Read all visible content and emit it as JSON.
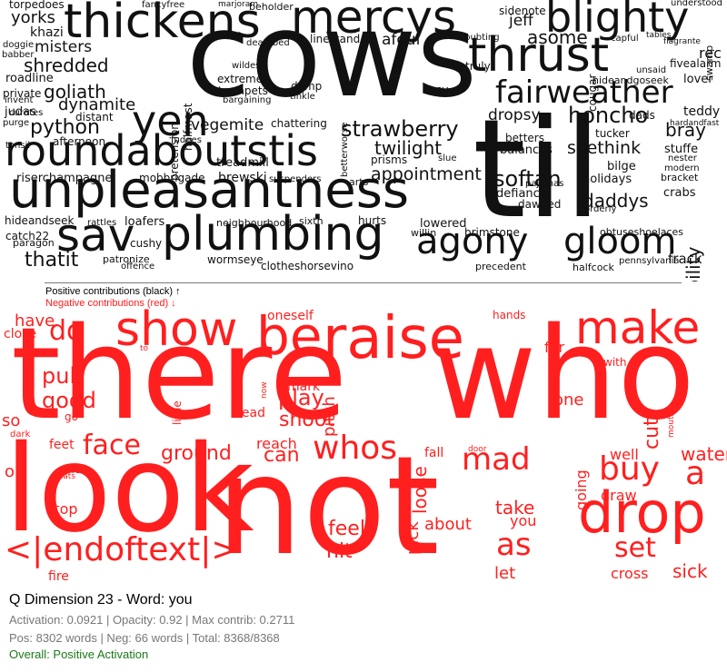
{
  "chart_data": {
    "type": "wordcloud",
    "legend": {
      "positive": "Positive contributions (black) ↑",
      "negative": "Negative contributions (red) ↓"
    },
    "colors": {
      "positive": "#111111",
      "negative": "#ff1f1f"
    },
    "positive_words": [
      {
        "text": "cows",
        "weight": 100
      },
      {
        "text": "til",
        "weight": 95
      },
      {
        "text": "unpleasantness",
        "weight": 60
      },
      {
        "text": "roundaboutstis",
        "weight": 50
      },
      {
        "text": "plumbing",
        "weight": 52
      },
      {
        "text": "thickens",
        "weight": 48
      },
      {
        "text": "mercys",
        "weight": 46
      },
      {
        "text": "thrust",
        "weight": 44
      },
      {
        "text": "blighty",
        "weight": 40
      },
      {
        "text": "sav",
        "weight": 42
      },
      {
        "text": "agony",
        "weight": 38
      },
      {
        "text": "gloom",
        "weight": 38
      },
      {
        "text": "fairweather",
        "weight": 32
      },
      {
        "text": "yen",
        "weight": 36
      },
      {
        "text": "strawberry",
        "weight": 24
      },
      {
        "text": "python",
        "weight": 20
      },
      {
        "text": "honcho",
        "weight": 22
      },
      {
        "text": "liability",
        "weight": 18
      },
      {
        "text": "shredded",
        "weight": 18
      },
      {
        "text": "goliath",
        "weight": 18
      },
      {
        "text": "dynamite",
        "weight": 17
      },
      {
        "text": "thatit",
        "weight": 18
      },
      {
        "text": "appointment",
        "weight": 17
      },
      {
        "text": "softan",
        "weight": 18
      },
      {
        "text": "twilight",
        "weight": 17
      },
      {
        "text": "asome",
        "weight": 18
      },
      {
        "text": "seethink",
        "weight": 16
      },
      {
        "text": "daddys",
        "weight": 16
      },
      {
        "text": "dropsy",
        "weight": 15
      },
      {
        "text": "vegemite",
        "weight": 15
      },
      {
        "text": "bray",
        "weight": 16
      },
      {
        "text": "frack",
        "weight": 14
      },
      {
        "text": "yorks",
        "weight": 16
      },
      {
        "text": "torpedoes",
        "weight": 11
      },
      {
        "text": "misters",
        "weight": 14
      },
      {
        "text": "afoul",
        "weight": 14
      },
      {
        "text": "jeff",
        "weight": 14
      },
      {
        "text": "wormseye",
        "weight": 11
      },
      {
        "text": "clotheshorsevino",
        "weight": 11
      },
      {
        "text": "brimstone",
        "weight": 11
      },
      {
        "text": "obtuseshoelaces",
        "weight": 10
      },
      {
        "text": "balances",
        "weight": 11
      },
      {
        "text": "holidays",
        "weight": 11
      },
      {
        "text": "crabs",
        "weight": 11
      },
      {
        "text": "teddy",
        "weight": 11
      },
      {
        "text": "lover",
        "weight": 11
      },
      {
        "text": "stuffe",
        "weight": 11
      },
      {
        "text": "loafers",
        "weight": 11
      },
      {
        "text": "patronize",
        "weight": 9
      },
      {
        "text": "hideandseek",
        "weight": 10
      },
      {
        "text": "catch22",
        "weight": 10
      },
      {
        "text": "paragon",
        "weight": 9
      },
      {
        "text": "riserchampagne",
        "weight": 10
      },
      {
        "text": "mobbrigade",
        "weight": 10
      },
      {
        "text": "brewski",
        "weight": 11
      },
      {
        "text": "lowered",
        "weight": 11
      },
      {
        "text": "willin",
        "weight": 9
      },
      {
        "text": "halfcock",
        "weight": 9
      },
      {
        "text": "fivealarm",
        "weight": 10
      },
      {
        "text": "rec",
        "weight": 12
      },
      {
        "text": "sidenote",
        "weight": 10
      },
      {
        "text": "beholder",
        "weight": 9
      },
      {
        "text": "marjoram",
        "weight": 8
      },
      {
        "text": "fancyfree",
        "weight": 9
      },
      {
        "text": "khazi",
        "weight": 11
      },
      {
        "text": "roadline",
        "weight": 11
      },
      {
        "text": "afternoon",
        "weight": 10
      },
      {
        "text": "linestand",
        "weight": 10
      },
      {
        "text": "extreme",
        "weight": 10
      },
      {
        "text": "trumpets",
        "weight": 9
      },
      {
        "text": "chattering",
        "weight": 10
      },
      {
        "text": "prisms",
        "weight": 10
      },
      {
        "text": "defiance",
        "weight": 10
      },
      {
        "text": "dawned",
        "weight": 10
      },
      {
        "text": "betters",
        "weight": 10
      },
      {
        "text": "tucker",
        "weight": 10
      },
      {
        "text": "bilge",
        "weight": 10
      },
      {
        "text": "treadmill",
        "weight": 10
      },
      {
        "text": "neighbourhood",
        "weight": 8
      },
      {
        "text": "hurts",
        "weight": 9
      },
      {
        "text": "sixth",
        "weight": 8
      },
      {
        "text": "cushy",
        "weight": 10
      },
      {
        "text": "doubting",
        "weight": 8
      },
      {
        "text": "truly",
        "weight": 10
      },
      {
        "text": "nosy",
        "weight": 10
      },
      {
        "text": "damp",
        "weight": 10
      },
      {
        "text": "tinkle",
        "weight": 8
      },
      {
        "text": "wildest",
        "weight": 8
      },
      {
        "text": "deathbed",
        "weight": 8
      },
      {
        "text": "swamp",
        "weight": 9
      },
      {
        "text": "understood",
        "weight": 8
      },
      {
        "text": "capful",
        "weight": 8
      },
      {
        "text": "tables",
        "weight": 7
      },
      {
        "text": "flagrante",
        "weight": 7
      },
      {
        "text": "unsaid",
        "weight": 8
      },
      {
        "text": "hideandgoseek",
        "weight": 8
      },
      {
        "text": "dads",
        "weight": 10
      },
      {
        "text": "hardandfast",
        "weight": 8
      },
      {
        "text": "nester",
        "weight": 8
      },
      {
        "text": "modern",
        "weight": 8
      },
      {
        "text": "bracket",
        "weight": 9
      },
      {
        "text": "orderly",
        "weight": 8
      },
      {
        "text": "pajamas",
        "weight": 8
      },
      {
        "text": "slue",
        "weight": 8
      },
      {
        "text": "arts",
        "weight": 8
      },
      {
        "text": "suspenders",
        "weight": 8
      },
      {
        "text": "fudges",
        "weight": 8
      },
      {
        "text": "tonsil",
        "weight": 8
      },
      {
        "text": "distant",
        "weight": 9
      },
      {
        "text": "judas",
        "weight": 10
      },
      {
        "text": "invent",
        "weight": 8
      },
      {
        "text": "private",
        "weight": 9
      },
      {
        "text": "curates",
        "weight": 8
      },
      {
        "text": "purge",
        "weight": 8
      },
      {
        "text": "babber",
        "weight": 7
      },
      {
        "text": "doggie",
        "weight": 7
      },
      {
        "text": "pennsylvania",
        "weight": 7
      },
      {
        "text": "precedent",
        "weight": 8
      },
      {
        "text": "offence",
        "weight": 8
      },
      {
        "text": "rattles",
        "weight": 8
      },
      {
        "text": "halfmast",
        "weight": 9
      },
      {
        "text": "pretension",
        "weight": 9
      },
      {
        "text": "cougar",
        "weight": 9
      },
      {
        "text": "bargaining",
        "weight": 8
      },
      {
        "text": "betterworse",
        "weight": 8
      }
    ],
    "negative_words": [
      {
        "text": "there",
        "weight": 100
      },
      {
        "text": "who",
        "weight": 95
      },
      {
        "text": "look",
        "weight": 90
      },
      {
        "text": "not",
        "weight": 98
      },
      {
        "text": "drop",
        "weight": 55
      },
      {
        "text": "raise",
        "weight": 45
      },
      {
        "text": "make",
        "weight": 40
      },
      {
        "text": "show",
        "weight": 40
      },
      {
        "text": "be",
        "weight": 40
      },
      {
        "text": "<|endoftext|>",
        "weight": 30
      },
      {
        "text": "mad",
        "weight": 28
      },
      {
        "text": "face",
        "weight": 24
      },
      {
        "text": "whos",
        "weight": 28
      },
      {
        "text": "buy",
        "weight": 28
      },
      {
        "text": "a",
        "weight": 26
      },
      {
        "text": "set",
        "weight": 24
      },
      {
        "text": "as",
        "weight": 26
      },
      {
        "text": "do",
        "weight": 24
      },
      {
        "text": "pull",
        "weight": 20
      },
      {
        "text": "good",
        "weight": 19
      },
      {
        "text": "play",
        "weight": 18
      },
      {
        "text": "shoot",
        "weight": 17
      },
      {
        "text": "ground",
        "weight": 17
      },
      {
        "text": "can",
        "weight": 17
      },
      {
        "text": "loose",
        "weight": 17
      },
      {
        "text": "pitch",
        "weight": 15
      },
      {
        "text": "cut",
        "weight": 19
      },
      {
        "text": "water",
        "weight": 17
      },
      {
        "text": "hit",
        "weight": 17
      },
      {
        "text": "feel",
        "weight": 17
      },
      {
        "text": "take",
        "weight": 16
      },
      {
        "text": "about",
        "weight": 15
      },
      {
        "text": "let",
        "weight": 15
      },
      {
        "text": "sick",
        "weight": 17
      },
      {
        "text": "cross",
        "weight": 15
      },
      {
        "text": "fire",
        "weight": 12
      },
      {
        "text": "have",
        "weight": 15
      },
      {
        "text": "close",
        "weight": 12
      },
      {
        "text": "so",
        "weight": 15
      },
      {
        "text": "on",
        "weight": 15
      },
      {
        "text": "stop",
        "weight": 13
      },
      {
        "text": "one",
        "weight": 15
      },
      {
        "text": "well",
        "weight": 14
      },
      {
        "text": "draw",
        "weight": 13
      },
      {
        "text": "going",
        "weight": 13
      },
      {
        "text": "pick",
        "weight": 15
      },
      {
        "text": "you",
        "weight": 13
      },
      {
        "text": "mark",
        "weight": 12
      },
      {
        "text": "reach",
        "weight": 12
      },
      {
        "text": "head",
        "weight": 12
      },
      {
        "text": "feet",
        "weight": 11
      },
      {
        "text": "blow",
        "weight": 10
      },
      {
        "text": "oneself",
        "weight": 11
      },
      {
        "text": "hands",
        "weight": 10
      },
      {
        "text": "far",
        "weight": 11
      },
      {
        "text": "with",
        "weight": 11
      },
      {
        "text": "little",
        "weight": 10
      },
      {
        "text": "fall",
        "weight": 11
      },
      {
        "text": "go",
        "weight": 9
      },
      {
        "text": "dark",
        "weight": 8
      },
      {
        "text": "thats",
        "weight": 8
      },
      {
        "text": "door",
        "weight": 7
      },
      {
        "text": "mouth",
        "weight": 7
      },
      {
        "text": "now",
        "weight": 7
      },
      {
        "text": "to",
        "weight": 7
      }
    ]
  },
  "footer": {
    "title": "Q Dimension 23 - Word: you",
    "stats1": "Activation: 0.0921 | Opacity: 0.92 | Max contrib: 0.2711",
    "stats2": "Pos: 8302 words | Neg: 66 words | Total: 8368/8368",
    "overall": "Overall: Positive Activation"
  }
}
